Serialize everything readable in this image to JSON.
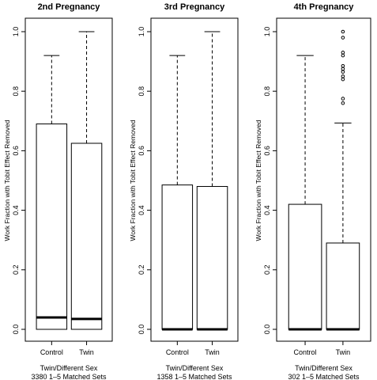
{
  "chart_data": [
    {
      "type": "boxplot",
      "title": "2nd Pregnancy",
      "ylabel": "Work Fraction with Tobit Effect Removed",
      "xlabel_line1": "Twin/Different Sex",
      "xlabel_line2": "3380 1–5 Matched Sets",
      "ylim": [
        0,
        1
      ],
      "yticks": [
        "0.0",
        "0.2",
        "0.4",
        "0.6",
        "0.8",
        "1.0"
      ],
      "categories": [
        "Control",
        "Twin"
      ],
      "boxes": [
        {
          "min": 0,
          "q1": 0,
          "median": 0.04,
          "q3": 0.69,
          "max": 0.92,
          "outliers": []
        },
        {
          "min": 0,
          "q1": 0,
          "median": 0.035,
          "q3": 0.625,
          "max": 1.0,
          "outliers": []
        }
      ]
    },
    {
      "type": "boxplot",
      "title": "3rd Pregnancy",
      "ylabel": "Work Fraction with Tobit Effect Removed",
      "xlabel_line1": "Twin/Different Sex",
      "xlabel_line2": "1358 1–5 Matched Sets",
      "ylim": [
        0,
        1
      ],
      "yticks": [
        "0.0",
        "0.2",
        "0.4",
        "0.6",
        "0.8",
        "1.0"
      ],
      "categories": [
        "Control",
        "Twin"
      ],
      "boxes": [
        {
          "min": 0,
          "q1": 0,
          "median": 0.0,
          "q3": 0.485,
          "max": 0.92,
          "outliers": []
        },
        {
          "min": 0,
          "q1": 0,
          "median": 0.0,
          "q3": 0.48,
          "max": 1.0,
          "outliers": []
        }
      ]
    },
    {
      "type": "boxplot",
      "title": "4th Pregnancy",
      "ylabel": "Work Fraction with Tobit Effect Removed",
      "xlabel_line1": "Twin/Different Sex",
      "xlabel_line2": "302 1–5 Matched Sets",
      "ylim": [
        0,
        1
      ],
      "yticks": [
        "0.0",
        "0.2",
        "0.4",
        "0.6",
        "0.8",
        "1.0"
      ],
      "categories": [
        "Control",
        "Twin"
      ],
      "boxes": [
        {
          "min": 0,
          "q1": 0,
          "median": 0.0,
          "q3": 0.42,
          "max": 0.92,
          "outliers": []
        },
        {
          "min": 0,
          "q1": 0,
          "median": 0.0,
          "q3": 0.29,
          "max": 0.693,
          "outliers": [
            0.76,
            0.775,
            0.84,
            0.85,
            0.865,
            0.875,
            0.885,
            0.92,
            0.93,
            0.98,
            1.0
          ]
        }
      ]
    }
  ]
}
